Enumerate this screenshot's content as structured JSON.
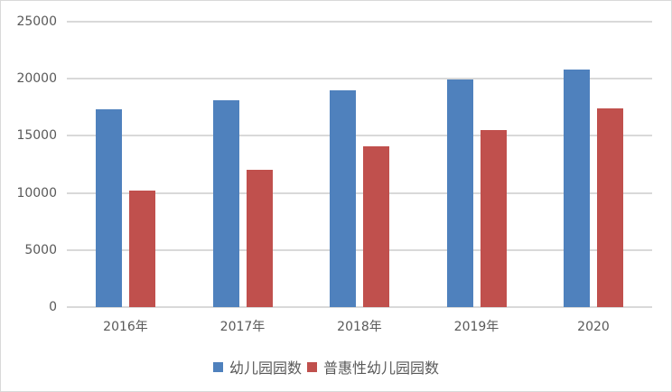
{
  "chart_data": {
    "type": "bar",
    "title": "",
    "xlabel": "",
    "ylabel": "",
    "ylim": [
      0,
      25000
    ],
    "yticks": [
      0,
      5000,
      10000,
      15000,
      20000,
      25000
    ],
    "ytick_labels": [
      "0",
      "5000",
      "10000",
      "15000",
      "20000",
      "25000"
    ],
    "grid": true,
    "legend_position": "bottom",
    "categories": [
      "2016年",
      "2017年",
      "2018年",
      "2019年",
      "2020"
    ],
    "series": [
      {
        "name": "幼儿园园数",
        "color": "#4f81bd",
        "values": [
          17300,
          18100,
          18970,
          19920,
          20790
        ]
      },
      {
        "name": "普惠性幼儿园园数",
        "color": "#c0504d",
        "values": [
          10240,
          12060,
          14050,
          15480,
          17380
        ]
      }
    ]
  },
  "legend": {
    "items": [
      {
        "label": "幼儿园园数",
        "color": "#4f81bd"
      },
      {
        "label": "普惠性幼儿园园数",
        "color": "#c0504d"
      }
    ]
  }
}
